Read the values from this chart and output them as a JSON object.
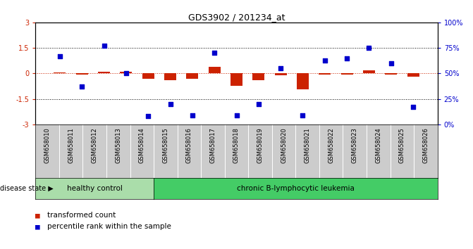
{
  "title": "GDS3902 / 201234_at",
  "samples": [
    "GSM658010",
    "GSM658011",
    "GSM658012",
    "GSM658013",
    "GSM658014",
    "GSM658015",
    "GSM658016",
    "GSM658017",
    "GSM658018",
    "GSM658019",
    "GSM658020",
    "GSM658021",
    "GSM658022",
    "GSM658023",
    "GSM658024",
    "GSM658025",
    "GSM658026"
  ],
  "transformed_count": [
    0.05,
    -0.05,
    0.1,
    0.08,
    -0.3,
    -0.38,
    -0.32,
    0.38,
    -0.72,
    -0.38,
    -0.12,
    -0.92,
    -0.05,
    -0.05,
    0.18,
    -0.06,
    -0.18
  ],
  "percentile_rank": [
    67,
    37,
    77,
    50,
    8,
    20,
    9,
    70,
    9,
    20,
    55,
    9,
    63,
    65,
    75,
    60,
    17
  ],
  "healthy_control_count": 5,
  "group1_label": "healthy control",
  "group2_label": "chronic B-lymphocytic leukemia",
  "disease_state_label": "disease state",
  "legend_bar": "transformed count",
  "legend_scatter": "percentile rank within the sample",
  "bar_color": "#cc2200",
  "scatter_color": "#0000cc",
  "group1_color": "#aaddaa",
  "group2_color": "#44cc66",
  "xtick_bg_color": "#cccccc",
  "ylim_left": [
    -3,
    3
  ],
  "ylim_right": [
    0,
    100
  ],
  "yticks_left": [
    -3,
    -1.5,
    0,
    1.5,
    3
  ],
  "yticks_right": [
    0,
    25,
    50,
    75,
    100
  ],
  "dotted_lines_black": [
    1.5,
    -1.5
  ],
  "dotted_line_red": 0,
  "bar_width": 0.55,
  "scatter_size": 18
}
